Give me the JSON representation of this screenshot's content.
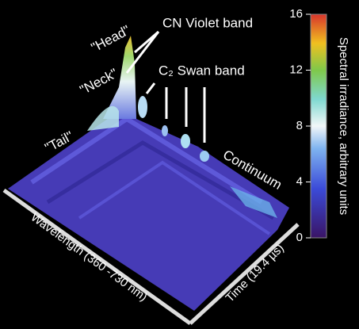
{
  "chart_data": {
    "type": "surface",
    "annotations": [
      "\"Head\"",
      "\"Neck\"",
      "\"Tail\"",
      "CN Violet band",
      "C₂ Swan band",
      "Continuum"
    ],
    "xlabel": "Wavelength (360 -730 nm)",
    "ylabel": "Time (19.4 µs)",
    "colorbar": {
      "label": "Spectral irradiance, arbitrary units",
      "lim": [
        0,
        16
      ],
      "ticks": [
        0,
        4,
        8,
        12,
        16
      ]
    }
  }
}
